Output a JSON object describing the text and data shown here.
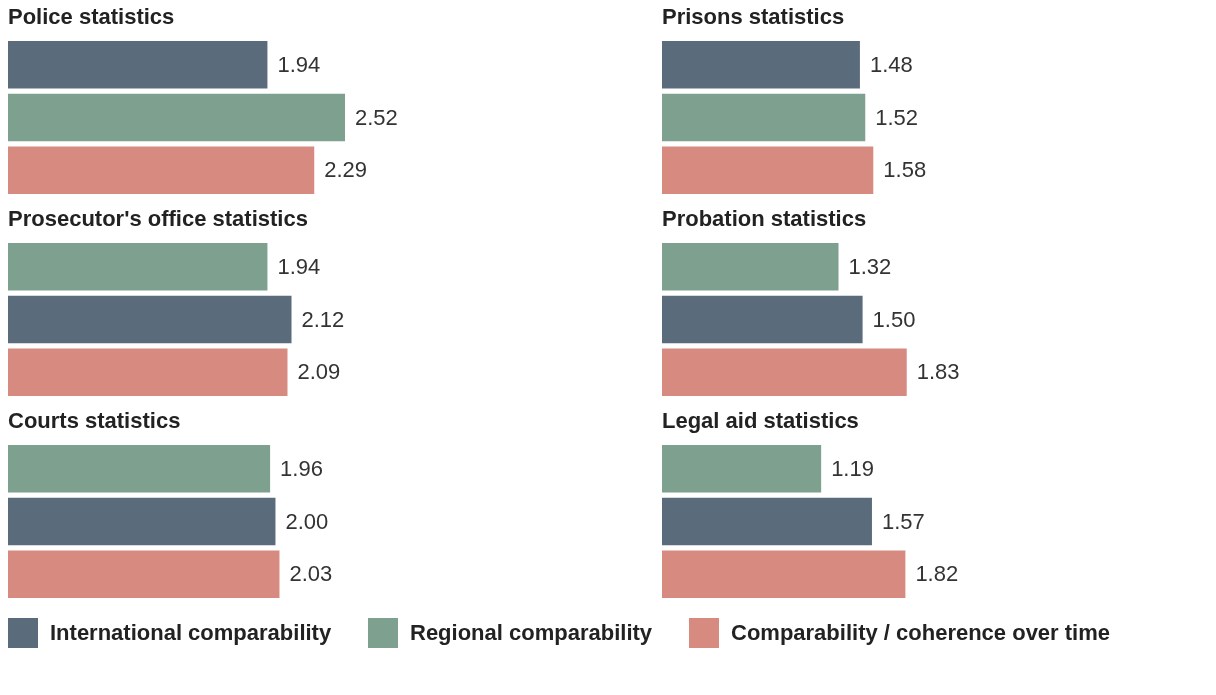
{
  "chart_data": [
    {
      "type": "bar",
      "orientation": "horizontal",
      "title": "Police statistics",
      "categories": [
        null
      ],
      "legend": "bottom",
      "series": [
        {
          "name": "International comparability",
          "color": "#5a6b7b",
          "values": [
            1.94
          ],
          "value_labels": [
            "1.94"
          ]
        },
        {
          "name": "Regional comparability",
          "color": "#7da08f",
          "values": [
            2.52
          ],
          "value_labels": [
            "2.52"
          ]
        },
        {
          "name": "Comparability / coherence over time",
          "color": "#d68a80",
          "values": [
            2.29
          ],
          "value_labels": [
            "2.29"
          ]
        }
      ]
    },
    {
      "type": "bar",
      "orientation": "horizontal",
      "title": "Prisons statistics",
      "categories": [
        null
      ],
      "legend": "bottom",
      "series": [
        {
          "name": "International comparability",
          "color": "#5a6b7b",
          "values": [
            1.48
          ],
          "value_labels": [
            "1.48"
          ]
        },
        {
          "name": "Regional comparability",
          "color": "#7da08f",
          "values": [
            1.52
          ],
          "value_labels": [
            "1.52"
          ]
        },
        {
          "name": "Comparability / coherence over time",
          "color": "#d68a80",
          "values": [
            1.58
          ],
          "value_labels": [
            "1.58"
          ]
        }
      ]
    },
    {
      "type": "bar",
      "orientation": "horizontal",
      "title": "Prosecutor's office statistics",
      "categories": [
        null
      ],
      "legend": "bottom",
      "series": [
        {
          "name": "Regional comparability",
          "color": "#7da08f",
          "values": [
            1.94
          ],
          "value_labels": [
            "1.94"
          ]
        },
        {
          "name": "International comparability",
          "color": "#5a6b7b",
          "values": [
            2.12
          ],
          "value_labels": [
            "2.12"
          ]
        },
        {
          "name": "Comparability / coherence over time",
          "color": "#d68a80",
          "values": [
            2.09
          ],
          "value_labels": [
            "2.09"
          ]
        }
      ]
    },
    {
      "type": "bar",
      "orientation": "horizontal",
      "title": "Probation statistics",
      "categories": [
        null
      ],
      "legend": "bottom",
      "series": [
        {
          "name": "Regional comparability",
          "color": "#7da08f",
          "values": [
            1.32
          ],
          "value_labels": [
            "1.32"
          ]
        },
        {
          "name": "International comparability",
          "color": "#5a6b7b",
          "values": [
            1.5
          ],
          "value_labels": [
            "1.50"
          ]
        },
        {
          "name": "Comparability / coherence over time",
          "color": "#d68a80",
          "values": [
            1.83
          ],
          "value_labels": [
            "1.83"
          ]
        }
      ]
    },
    {
      "type": "bar",
      "orientation": "horizontal",
      "title": "Courts statistics",
      "categories": [
        null
      ],
      "legend": "bottom",
      "series": [
        {
          "name": "Regional comparability",
          "color": "#7da08f",
          "values": [
            1.96
          ],
          "value_labels": [
            "1.96"
          ]
        },
        {
          "name": "International comparability",
          "color": "#5a6b7b",
          "values": [
            2.0
          ],
          "value_labels": [
            "2.00"
          ]
        },
        {
          "name": "Comparability / coherence over time",
          "color": "#d68a80",
          "values": [
            2.03
          ],
          "value_labels": [
            "2.03"
          ]
        }
      ]
    },
    {
      "type": "bar",
      "orientation": "horizontal",
      "title": "Legal aid statistics",
      "categories": [
        null
      ],
      "legend": "bottom",
      "series": [
        {
          "name": "Regional comparability",
          "color": "#7da08f",
          "values": [
            1.19
          ],
          "value_labels": [
            "1.19"
          ]
        },
        {
          "name": "International comparability",
          "color": "#5a6b7b",
          "values": [
            1.57
          ],
          "value_labels": [
            "1.57"
          ]
        },
        {
          "name": "Comparability / coherence over time",
          "color": "#d68a80",
          "values": [
            1.82
          ],
          "value_labels": [
            "1.82"
          ]
        }
      ]
    }
  ]
}
